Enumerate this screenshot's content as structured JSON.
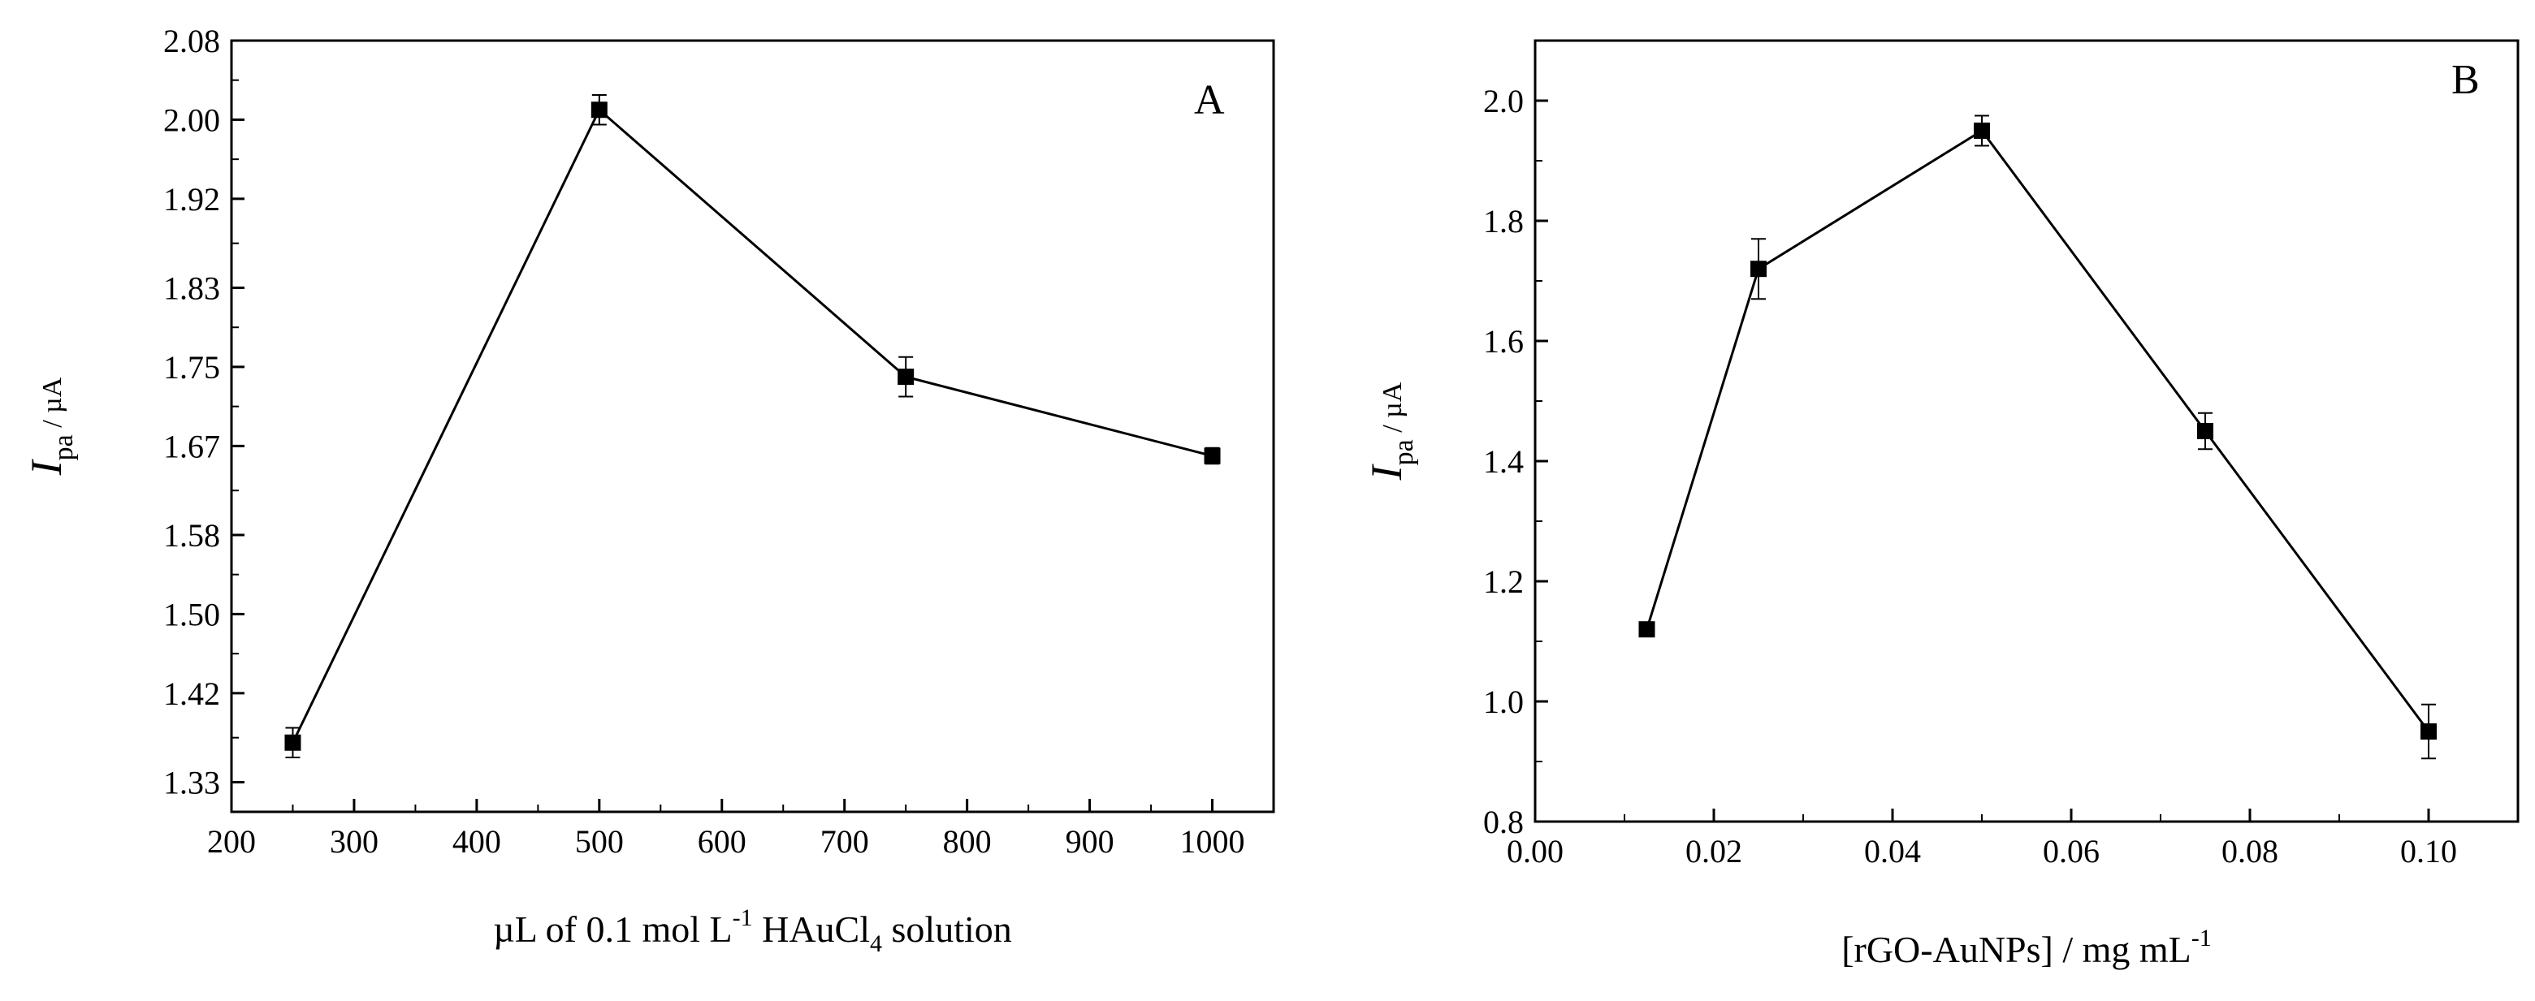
{
  "chart_data": [
    {
      "type": "line",
      "panel_label": "A",
      "xlabel": {
        "prefix": "µL of 0.1 mol L",
        "sup": "-1",
        "middle": " HAuCl",
        "sub": "4",
        "suffix": " solution"
      },
      "ylabel": {
        "main": "I",
        "sub": "pa",
        "rest": " / µA"
      },
      "xlim": [
        200,
        1050
      ],
      "ylim": [
        1.3,
        2.08
      ],
      "x_ticks": [
        "200",
        "300",
        "400",
        "500",
        "600",
        "700",
        "800",
        "900",
        "1000"
      ],
      "y_ticks": [
        "1.33",
        "1.42",
        "1.50",
        "1.58",
        "1.67",
        "1.75",
        "1.83",
        "1.92",
        "2.00",
        "2.08"
      ],
      "marker": "square",
      "color": "#000000",
      "series": [
        {
          "x": [
            250,
            500,
            750,
            1000
          ],
          "y": [
            1.37,
            2.01,
            1.74,
            1.66
          ],
          "err": [
            0.015,
            0.015,
            0.02,
            0.008
          ]
        }
      ]
    },
    {
      "type": "line",
      "panel_label": "B",
      "xlabel": {
        "prefix": "[rGO-AuNPs] / mg mL",
        "sup": "-1",
        "middle": "",
        "sub": "",
        "suffix": ""
      },
      "ylabel": {
        "main": "I",
        "sub": "pa",
        "rest": " / µA"
      },
      "xlim": [
        0.0,
        0.11
      ],
      "ylim": [
        0.8,
        2.1
      ],
      "x_ticks": [
        "0.00",
        "0.02",
        "0.04",
        "0.06",
        "0.08",
        "0.10"
      ],
      "y_ticks": [
        "0.8",
        "1.0",
        "1.2",
        "1.4",
        "1.6",
        "1.8",
        "2.0"
      ],
      "marker": "square",
      "color": "#000000",
      "series": [
        {
          "x": [
            0.0125,
            0.025,
            0.05,
            0.075,
            0.1
          ],
          "y": [
            1.12,
            1.72,
            1.95,
            1.45,
            0.95
          ],
          "err": [
            0.01,
            0.05,
            0.025,
            0.03,
            0.045
          ]
        }
      ]
    }
  ]
}
